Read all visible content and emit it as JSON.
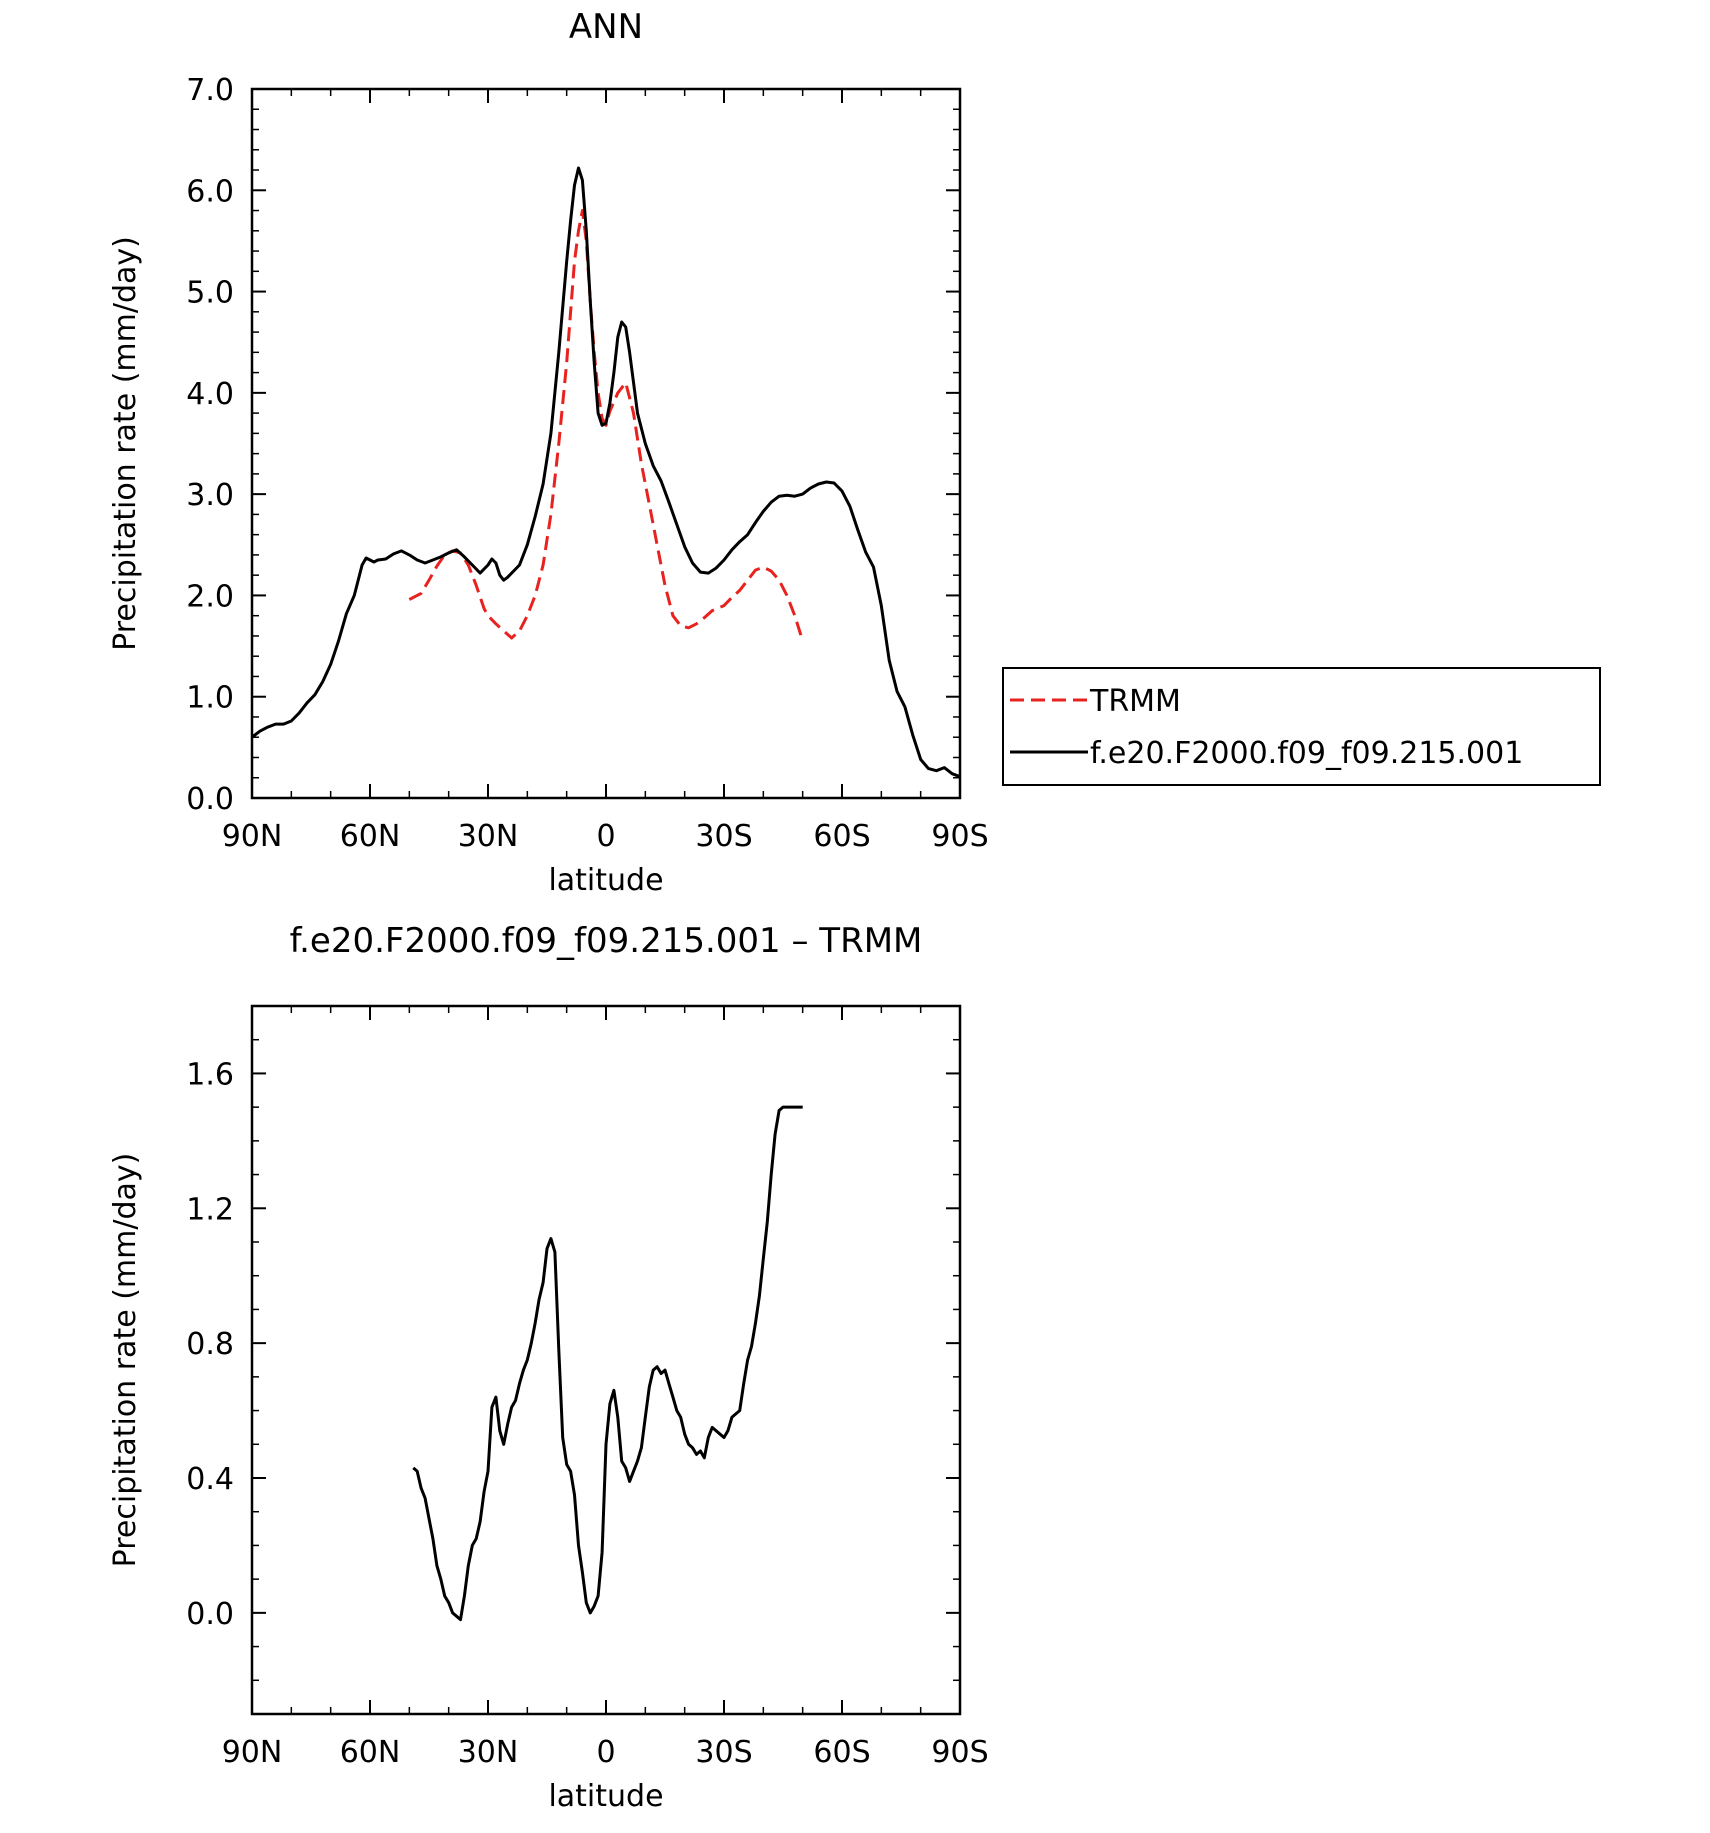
{
  "chart_data": [
    {
      "type": "line",
      "title": "ANN",
      "xlabel": "latitude",
      "ylabel": "Precipitation rate (mm/day)",
      "xlim": [
        90,
        -90
      ],
      "ylim": [
        0.0,
        7.0
      ],
      "xticks": [
        90,
        60,
        30,
        0,
        -30,
        -60,
        -90
      ],
      "xticklabels": [
        "90N",
        "60N",
        "30N",
        "0",
        "30S",
        "60S",
        "90S"
      ],
      "yticks": [
        0,
        1,
        2,
        3,
        4,
        5,
        6,
        7
      ],
      "yticklabels": [
        "0.0",
        "1.0",
        "2.0",
        "3.0",
        "4.0",
        "5.0",
        "6.0",
        "7.0"
      ],
      "legend_position": "right",
      "series": [
        {
          "name": "TRMM",
          "color": "#e8231f",
          "style": "dashed",
          "x": [
            50,
            47,
            45,
            43,
            41,
            39,
            37,
            35,
            33,
            31,
            30,
            28,
            26,
            24,
            22,
            20,
            18,
            16,
            14,
            12,
            10,
            9,
            8,
            7,
            6,
            5,
            4,
            3,
            2,
            1,
            0,
            -1,
            -3,
            -5,
            -7,
            -9,
            -11,
            -13,
            -15,
            -17,
            -19,
            -21,
            -23,
            -25,
            -27,
            -30,
            -32,
            -34,
            -36,
            -38,
            -40,
            -42,
            -44,
            -46,
            -48,
            -50
          ],
          "y": [
            1.96,
            2.02,
            2.15,
            2.29,
            2.4,
            2.44,
            2.42,
            2.3,
            2.1,
            1.87,
            1.8,
            1.72,
            1.65,
            1.58,
            1.65,
            1.8,
            2.0,
            2.3,
            2.8,
            3.5,
            4.3,
            4.8,
            5.3,
            5.6,
            5.8,
            5.5,
            4.9,
            4.4,
            4.0,
            3.75,
            3.68,
            3.82,
            4.0,
            4.1,
            3.8,
            3.3,
            2.9,
            2.5,
            2.1,
            1.8,
            1.7,
            1.68,
            1.72,
            1.78,
            1.85,
            1.9,
            1.98,
            2.05,
            2.15,
            2.25,
            2.28,
            2.24,
            2.15,
            2.0,
            1.8,
            1.55
          ]
        },
        {
          "name": "f.e20.F2000.f09_f09.215.001",
          "color": "#000000",
          "style": "solid",
          "x": [
            90,
            88,
            86,
            84,
            82,
            80,
            78,
            76,
            74,
            72,
            70,
            68,
            66,
            64,
            62,
            61,
            60,
            59,
            58,
            56,
            54,
            52,
            50,
            48,
            46,
            44,
            42,
            40,
            38,
            36,
            34,
            32,
            30,
            29,
            28,
            27,
            26,
            25,
            24,
            22,
            20,
            18,
            16,
            14,
            12,
            10,
            9,
            8,
            7,
            6,
            5,
            4,
            3,
            2,
            1,
            0,
            -1,
            -2,
            -3,
            -4,
            -5,
            -6,
            -8,
            -10,
            -12,
            -14,
            -16,
            -18,
            -20,
            -22,
            -24,
            -26,
            -28,
            -30,
            -32,
            -34,
            -36,
            -38,
            -40,
            -42,
            -44,
            -46,
            -48,
            -50,
            -52,
            -54,
            -56,
            -58,
            -60,
            -62,
            -64,
            -66,
            -68,
            -70,
            -72,
            -74,
            -76,
            -78,
            -80,
            -82,
            -84,
            -86,
            -88,
            -90
          ],
          "y": [
            0.6,
            0.66,
            0.7,
            0.73,
            0.73,
            0.76,
            0.84,
            0.94,
            1.02,
            1.15,
            1.32,
            1.55,
            1.82,
            2.0,
            2.3,
            2.37,
            2.35,
            2.33,
            2.35,
            2.36,
            2.41,
            2.44,
            2.4,
            2.35,
            2.32,
            2.35,
            2.38,
            2.42,
            2.45,
            2.38,
            2.3,
            2.22,
            2.3,
            2.36,
            2.32,
            2.2,
            2.15,
            2.18,
            2.22,
            2.3,
            2.5,
            2.78,
            3.1,
            3.6,
            4.4,
            5.3,
            5.7,
            6.05,
            6.22,
            6.1,
            5.6,
            4.9,
            4.3,
            3.8,
            3.68,
            3.7,
            3.9,
            4.2,
            4.55,
            4.7,
            4.65,
            4.4,
            3.8,
            3.5,
            3.28,
            3.13,
            2.92,
            2.7,
            2.48,
            2.32,
            2.23,
            2.22,
            2.27,
            2.35,
            2.45,
            2.53,
            2.6,
            2.72,
            2.83,
            2.92,
            2.98,
            2.99,
            2.98,
            3.0,
            3.06,
            3.1,
            3.12,
            3.11,
            3.03,
            2.88,
            2.65,
            2.43,
            2.28,
            1.9,
            1.36,
            1.05,
            0.9,
            0.62,
            0.38,
            0.29,
            0.27,
            0.3,
            0.24,
            0.21
          ]
        }
      ]
    },
    {
      "type": "line",
      "title": "f.e20.F2000.f09_f09.215.001 – TRMM",
      "xlabel": "latitude",
      "ylabel": "Precipitation rate (mm/day)",
      "xlim": [
        90,
        -90
      ],
      "ylim": [
        -0.3,
        1.8
      ],
      "xticks": [
        90,
        60,
        30,
        0,
        -30,
        -60,
        -90
      ],
      "xticklabels": [
        "90N",
        "60N",
        "30N",
        "0",
        "30S",
        "60S",
        "90S"
      ],
      "yticks": [
        0.0,
        0.4,
        0.8,
        1.2,
        1.6
      ],
      "yticklabels": [
        "0.0",
        "0.4",
        "0.8",
        "1.2",
        "1.6"
      ],
      "series": [
        {
          "color": "#000000",
          "style": "solid",
          "x": [
            49,
            48,
            47,
            46,
            45,
            44,
            43,
            42,
            41,
            40,
            39,
            38,
            37,
            36,
            35,
            34,
            33,
            32,
            31,
            30,
            29,
            28,
            27,
            26,
            25,
            24,
            23,
            22,
            21,
            20,
            19,
            18,
            17,
            16,
            15,
            14,
            13,
            12,
            11,
            10,
            9,
            8,
            7,
            6,
            5,
            4,
            3,
            2,
            1,
            0,
            -1,
            -2,
            -3,
            -4,
            -5,
            -6,
            -7,
            -8,
            -9,
            -10,
            -11,
            -12,
            -13,
            -14,
            -15,
            -16,
            -17,
            -18,
            -19,
            -20,
            -21,
            -22,
            -23,
            -24,
            -25,
            -26,
            -27,
            -28,
            -29,
            -30,
            -31,
            -32,
            -33,
            -34,
            -35,
            -36,
            -37,
            -38,
            -39,
            -40,
            -41,
            -42,
            -43,
            -44,
            -45,
            -46,
            -47,
            -48,
            -49,
            -50
          ],
          "y": [
            0.43,
            0.42,
            0.37,
            0.34,
            0.28,
            0.22,
            0.14,
            0.1,
            0.05,
            0.03,
            0.0,
            -0.01,
            -0.02,
            0.05,
            0.14,
            0.2,
            0.22,
            0.27,
            0.36,
            0.42,
            0.61,
            0.64,
            0.54,
            0.5,
            0.56,
            0.61,
            0.63,
            0.68,
            0.72,
            0.75,
            0.8,
            0.86,
            0.93,
            0.98,
            1.08,
            1.11,
            1.07,
            0.78,
            0.52,
            0.44,
            0.42,
            0.35,
            0.2,
            0.12,
            0.03,
            0.0,
            0.02,
            0.05,
            0.18,
            0.5,
            0.62,
            0.66,
            0.58,
            0.45,
            0.43,
            0.39,
            0.42,
            0.45,
            0.49,
            0.58,
            0.67,
            0.72,
            0.73,
            0.71,
            0.72,
            0.68,
            0.64,
            0.6,
            0.58,
            0.53,
            0.5,
            0.49,
            0.47,
            0.48,
            0.46,
            0.52,
            0.55,
            0.54,
            0.53,
            0.52,
            0.54,
            0.58,
            0.59,
            0.6,
            0.68,
            0.75,
            0.79,
            0.86,
            0.94,
            1.05,
            1.16,
            1.3,
            1.42,
            1.49,
            1.5,
            1.5,
            1.5,
            1.5,
            1.5,
            1.5
          ]
        }
      ]
    }
  ]
}
